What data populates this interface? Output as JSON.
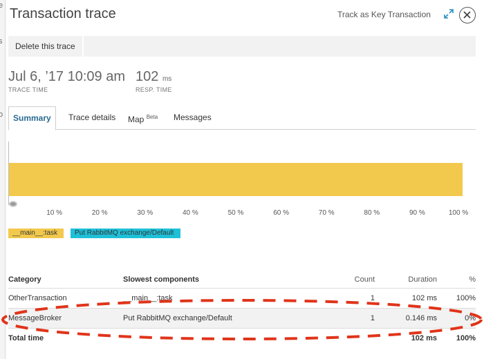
{
  "behind": {
    "fragments": [
      "e",
      "s",
      "o"
    ]
  },
  "modal": {
    "title": "Transaction trace",
    "track_label": "Track as Key Transaction",
    "expand_icon": "expand-arrows-icon",
    "close_icon": "close-x-icon"
  },
  "toolbar": {
    "delete_label": "Delete this trace"
  },
  "summary": {
    "trace_time": "Jul 6, ’17 10:09 am",
    "trace_time_label": "TRACE TIME",
    "resp_time_value": "102",
    "resp_time_unit": "ms",
    "resp_time_label": "RESP. TIME"
  },
  "tabs": [
    {
      "label": "Summary",
      "sup": "",
      "active": true
    },
    {
      "label": "Trace details",
      "sup": "",
      "active": false
    },
    {
      "label": "Map",
      "sup": "Beta",
      "active": false
    },
    {
      "label": "Messages",
      "sup": "",
      "active": false
    }
  ],
  "chart_data": {
    "type": "bar",
    "orientation": "horizontal-stacked",
    "x_ticks": [
      "10 %",
      "20 %",
      "30 %",
      "40 %",
      "50 %",
      "60 %",
      "70 %",
      "80 %",
      "90 %",
      "100 %"
    ],
    "xlim": [
      0,
      100
    ],
    "series": [
      {
        "name": "__main__:task",
        "value": 100,
        "color": "#f2c94c"
      },
      {
        "name": "Put RabbitMQ exchange/Default",
        "value": 0,
        "color": "#1ec0d8"
      }
    ]
  },
  "legend": [
    {
      "label": "__main__:task",
      "color": "#f2c94c"
    },
    {
      "label": "Put RabbitMQ exchange/Default",
      "color": "#1ec0d8"
    }
  ],
  "table": {
    "headers": {
      "category": "Category",
      "slowest": "Slowest components",
      "count": "Count",
      "duration": "Duration",
      "pct": "%"
    },
    "rows": [
      {
        "category": "OtherTransaction",
        "slowest": "__main__:task",
        "count": "1",
        "duration": "102 ms",
        "pct": "100%"
      },
      {
        "category": "MessageBroker",
        "slowest": "Put RabbitMQ exchange/Default",
        "count": "1",
        "duration": "0.146 ms",
        "pct": "0%"
      }
    ],
    "total": {
      "label": "Total time",
      "duration": "102 ms",
      "pct": "100%"
    }
  },
  "annotation_color": "#e0341a"
}
